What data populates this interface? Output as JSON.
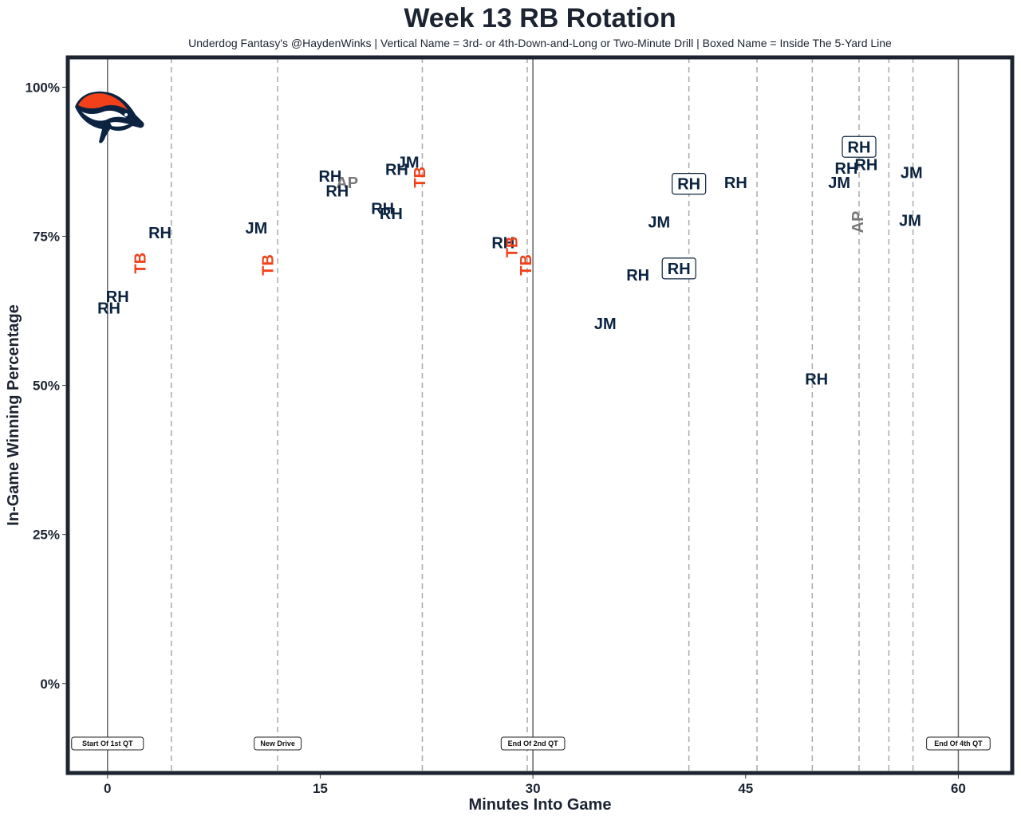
{
  "chart_data": {
    "type": "scatter",
    "title": "Week 13 RB Rotation",
    "subtitle": "Underdog Fantasy's @HaydenWinks | Vertical Name = 3rd- or 4th-Down-and-Long or Two-Minute Drill | Boxed Name = Inside The 5-Yard Line",
    "xlabel": "Minutes Into Game",
    "ylabel": "In-Game Winning Percentage",
    "xlim": [
      -2.8,
      63.8
    ],
    "ylim": [
      -0.15,
      1.05
    ],
    "x_ticks": [
      0,
      15,
      30,
      45,
      60
    ],
    "x_tick_labels": [
      "0",
      "15",
      "30",
      "45",
      "60"
    ],
    "y_ticks": [
      0,
      0.25,
      0.5,
      0.75,
      1.0
    ],
    "y_tick_labels": [
      "0%",
      "25%",
      "50%",
      "75%",
      "100%"
    ],
    "grid": false,
    "colors": {
      "RH": "#0b2340",
      "JM": "#0b2340",
      "TB": "#f2401a",
      "AP": "#777777",
      "frame": "#1c2431",
      "vline": "#666666",
      "dashed": "#aaaaaa"
    },
    "solid_lines": [
      0,
      30,
      60
    ],
    "dashed_lines": [
      4.5,
      12,
      22.2,
      29.6,
      41,
      45.8,
      49.7,
      53,
      55.1,
      56.8
    ],
    "annotations": [
      {
        "x": 0,
        "label": "Start Of 1st QT"
      },
      {
        "x": 12,
        "label": "New Drive"
      },
      {
        "x": 30,
        "label": "End Of 2nd QT"
      },
      {
        "x": 60,
        "label": "End Of 4th QT"
      }
    ],
    "points": [
      {
        "x": 0.1,
        "y": 0.63,
        "label": "RH",
        "vertical": false,
        "boxed": false
      },
      {
        "x": 0.7,
        "y": 0.649,
        "label": "RH",
        "vertical": false,
        "boxed": false
      },
      {
        "x": 2.3,
        "y": 0.705,
        "label": "TB",
        "vertical": true,
        "boxed": false
      },
      {
        "x": 3.7,
        "y": 0.756,
        "label": "RH",
        "vertical": false,
        "boxed": false
      },
      {
        "x": 10.5,
        "y": 0.764,
        "label": "JM",
        "vertical": false,
        "boxed": false
      },
      {
        "x": 11.3,
        "y": 0.702,
        "label": "TB",
        "vertical": true,
        "boxed": false
      },
      {
        "x": 15.7,
        "y": 0.851,
        "label": "RH",
        "vertical": false,
        "boxed": false
      },
      {
        "x": 16.9,
        "y": 0.84,
        "label": "AP",
        "vertical": false,
        "boxed": false
      },
      {
        "x": 16.2,
        "y": 0.826,
        "label": "RH",
        "vertical": false,
        "boxed": false
      },
      {
        "x": 19.4,
        "y": 0.797,
        "label": "RH",
        "vertical": false,
        "boxed": false
      },
      {
        "x": 20.0,
        "y": 0.788,
        "label": "RH",
        "vertical": false,
        "boxed": false
      },
      {
        "x": 20.4,
        "y": 0.862,
        "label": "RH",
        "vertical": false,
        "boxed": false
      },
      {
        "x": 21.2,
        "y": 0.874,
        "label": "JM",
        "vertical": false,
        "boxed": false
      },
      {
        "x": 22.0,
        "y": 0.849,
        "label": "TB",
        "vertical": true,
        "boxed": false
      },
      {
        "x": 27.9,
        "y": 0.739,
        "label": "RH",
        "vertical": false,
        "boxed": false
      },
      {
        "x": 28.5,
        "y": 0.732,
        "label": "TB",
        "vertical": true,
        "boxed": false
      },
      {
        "x": 29.5,
        "y": 0.702,
        "label": "TB",
        "vertical": true,
        "boxed": false
      },
      {
        "x": 35.1,
        "y": 0.604,
        "label": "JM",
        "vertical": false,
        "boxed": false
      },
      {
        "x": 37.4,
        "y": 0.685,
        "label": "RH",
        "vertical": false,
        "boxed": false
      },
      {
        "x": 38.9,
        "y": 0.774,
        "label": "JM",
        "vertical": false,
        "boxed": false
      },
      {
        "x": 40.3,
        "y": 0.696,
        "label": "RH",
        "vertical": false,
        "boxed": true
      },
      {
        "x": 41.0,
        "y": 0.838,
        "label": "RH",
        "vertical": false,
        "boxed": true
      },
      {
        "x": 44.3,
        "y": 0.84,
        "label": "RH",
        "vertical": false,
        "boxed": false
      },
      {
        "x": 50.0,
        "y": 0.511,
        "label": "RH",
        "vertical": false,
        "boxed": false
      },
      {
        "x": 51.6,
        "y": 0.84,
        "label": "JM",
        "vertical": false,
        "boxed": false
      },
      {
        "x": 52.1,
        "y": 0.864,
        "label": "RH",
        "vertical": false,
        "boxed": false
      },
      {
        "x": 52.9,
        "y": 0.774,
        "label": "AP",
        "vertical": true,
        "boxed": false
      },
      {
        "x": 53.0,
        "y": 0.9,
        "label": "RH",
        "vertical": false,
        "boxed": true
      },
      {
        "x": 53.5,
        "y": 0.87,
        "label": "RH",
        "vertical": false,
        "boxed": false
      },
      {
        "x": 56.7,
        "y": 0.857,
        "label": "JM",
        "vertical": false,
        "boxed": false
      },
      {
        "x": 56.6,
        "y": 0.777,
        "label": "JM",
        "vertical": false,
        "boxed": false
      }
    ],
    "logo": "broncos-horse-head-logo"
  }
}
